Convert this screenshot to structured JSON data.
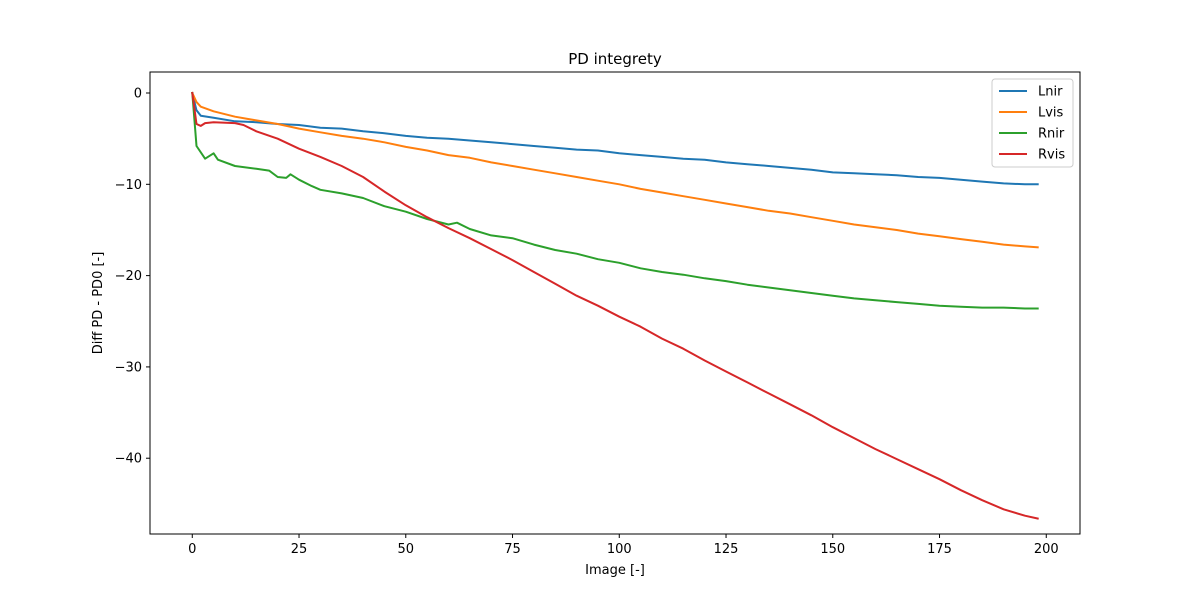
{
  "chart_data": {
    "type": "line",
    "title": "PD integrety",
    "xlabel": "Image [-]",
    "ylabel": "Diff PD - PD0 [-]",
    "xlim": [
      -9.9,
      207.9
    ],
    "ylim": [
      -48.3,
      2.3
    ],
    "x_ticks": [
      0,
      25,
      50,
      75,
      100,
      125,
      150,
      175,
      200
    ],
    "y_ticks": [
      0,
      -10,
      -20,
      -30,
      -40
    ],
    "x_tick_labels": [
      "0",
      "25",
      "50",
      "75",
      "100",
      "125",
      "150",
      "175",
      "200"
    ],
    "y_tick_labels": [
      "0",
      "−10",
      "−20",
      "−30",
      "−40"
    ],
    "grid": false,
    "legend_position": "top-right",
    "series": [
      {
        "name": "Lnir",
        "color": "#1f77b4",
        "points": [
          [
            0,
            0
          ],
          [
            1,
            -1.9
          ],
          [
            2,
            -2.5
          ],
          [
            5,
            -2.7
          ],
          [
            10,
            -3.1
          ],
          [
            15,
            -3.2
          ],
          [
            20,
            -3.4
          ],
          [
            25,
            -3.5
          ],
          [
            30,
            -3.8
          ],
          [
            35,
            -3.9
          ],
          [
            40,
            -4.2
          ],
          [
            45,
            -4.4
          ],
          [
            50,
            -4.7
          ],
          [
            55,
            -4.9
          ],
          [
            60,
            -5.0
          ],
          [
            65,
            -5.2
          ],
          [
            70,
            -5.4
          ],
          [
            75,
            -5.6
          ],
          [
            80,
            -5.8
          ],
          [
            85,
            -6.0
          ],
          [
            90,
            -6.2
          ],
          [
            95,
            -6.3
          ],
          [
            100,
            -6.6
          ],
          [
            105,
            -6.8
          ],
          [
            110,
            -7.0
          ],
          [
            115,
            -7.2
          ],
          [
            120,
            -7.3
          ],
          [
            125,
            -7.6
          ],
          [
            130,
            -7.8
          ],
          [
            135,
            -8.0
          ],
          [
            140,
            -8.2
          ],
          [
            145,
            -8.4
          ],
          [
            150,
            -8.7
          ],
          [
            155,
            -8.8
          ],
          [
            160,
            -8.9
          ],
          [
            165,
            -9.0
          ],
          [
            170,
            -9.2
          ],
          [
            175,
            -9.3
          ],
          [
            180,
            -9.5
          ],
          [
            185,
            -9.7
          ],
          [
            190,
            -9.9
          ],
          [
            195,
            -10.0
          ],
          [
            198,
            -10.0
          ]
        ]
      },
      {
        "name": "Lvis",
        "color": "#ff7f0e",
        "points": [
          [
            0,
            0
          ],
          [
            1,
            -1.0
          ],
          [
            2,
            -1.5
          ],
          [
            5,
            -2.0
          ],
          [
            10,
            -2.6
          ],
          [
            15,
            -3.0
          ],
          [
            20,
            -3.4
          ],
          [
            25,
            -3.9
          ],
          [
            30,
            -4.3
          ],
          [
            35,
            -4.7
          ],
          [
            40,
            -5.0
          ],
          [
            45,
            -5.4
          ],
          [
            50,
            -5.9
          ],
          [
            55,
            -6.3
          ],
          [
            60,
            -6.8
          ],
          [
            65,
            -7.1
          ],
          [
            70,
            -7.6
          ],
          [
            75,
            -8.0
          ],
          [
            80,
            -8.4
          ],
          [
            85,
            -8.8
          ],
          [
            90,
            -9.2
          ],
          [
            95,
            -9.6
          ],
          [
            100,
            -10.0
          ],
          [
            105,
            -10.5
          ],
          [
            110,
            -10.9
          ],
          [
            115,
            -11.3
          ],
          [
            120,
            -11.7
          ],
          [
            125,
            -12.1
          ],
          [
            130,
            -12.5
          ],
          [
            135,
            -12.9
          ],
          [
            140,
            -13.2
          ],
          [
            145,
            -13.6
          ],
          [
            150,
            -14.0
          ],
          [
            155,
            -14.4
          ],
          [
            160,
            -14.7
          ],
          [
            165,
            -15.0
          ],
          [
            170,
            -15.4
          ],
          [
            175,
            -15.7
          ],
          [
            180,
            -16.0
          ],
          [
            185,
            -16.3
          ],
          [
            190,
            -16.6
          ],
          [
            195,
            -16.8
          ],
          [
            198,
            -16.9
          ]
        ]
      },
      {
        "name": "Rnir",
        "color": "#2ca02c",
        "points": [
          [
            0,
            0
          ],
          [
            1,
            -5.8
          ],
          [
            3,
            -7.2
          ],
          [
            5,
            -6.6
          ],
          [
            6,
            -7.3
          ],
          [
            10,
            -8.0
          ],
          [
            15,
            -8.3
          ],
          [
            18,
            -8.5
          ],
          [
            20,
            -9.2
          ],
          [
            22,
            -9.3
          ],
          [
            23,
            -8.9
          ],
          [
            25,
            -9.5
          ],
          [
            28,
            -10.2
          ],
          [
            30,
            -10.6
          ],
          [
            35,
            -11.0
          ],
          [
            40,
            -11.5
          ],
          [
            45,
            -12.4
          ],
          [
            50,
            -13.0
          ],
          [
            55,
            -13.8
          ],
          [
            60,
            -14.4
          ],
          [
            62,
            -14.2
          ],
          [
            65,
            -14.9
          ],
          [
            70,
            -15.6
          ],
          [
            75,
            -15.9
          ],
          [
            80,
            -16.6
          ],
          [
            85,
            -17.2
          ],
          [
            90,
            -17.6
          ],
          [
            95,
            -18.2
          ],
          [
            100,
            -18.6
          ],
          [
            105,
            -19.2
          ],
          [
            110,
            -19.6
          ],
          [
            115,
            -19.9
          ],
          [
            120,
            -20.3
          ],
          [
            125,
            -20.6
          ],
          [
            130,
            -21.0
          ],
          [
            135,
            -21.3
          ],
          [
            140,
            -21.6
          ],
          [
            145,
            -21.9
          ],
          [
            150,
            -22.2
          ],
          [
            155,
            -22.5
          ],
          [
            160,
            -22.7
          ],
          [
            165,
            -22.9
          ],
          [
            170,
            -23.1
          ],
          [
            175,
            -23.3
          ],
          [
            180,
            -23.4
          ],
          [
            185,
            -23.5
          ],
          [
            190,
            -23.5
          ],
          [
            195,
            -23.6
          ],
          [
            198,
            -23.6
          ]
        ]
      },
      {
        "name": "Rvis",
        "color": "#d62728",
        "points": [
          [
            0,
            0
          ],
          [
            1,
            -3.4
          ],
          [
            2,
            -3.6
          ],
          [
            3,
            -3.3
          ],
          [
            5,
            -3.2
          ],
          [
            10,
            -3.3
          ],
          [
            12,
            -3.5
          ],
          [
            15,
            -4.2
          ],
          [
            20,
            -5.0
          ],
          [
            25,
            -6.1
          ],
          [
            30,
            -7.0
          ],
          [
            35,
            -8.0
          ],
          [
            40,
            -9.2
          ],
          [
            45,
            -10.8
          ],
          [
            50,
            -12.3
          ],
          [
            55,
            -13.6
          ],
          [
            60,
            -14.8
          ],
          [
            65,
            -15.9
          ],
          [
            70,
            -17.1
          ],
          [
            75,
            -18.3
          ],
          [
            80,
            -19.6
          ],
          [
            85,
            -20.9
          ],
          [
            90,
            -22.2
          ],
          [
            95,
            -23.3
          ],
          [
            100,
            -24.5
          ],
          [
            105,
            -25.6
          ],
          [
            110,
            -26.9
          ],
          [
            115,
            -28.0
          ],
          [
            120,
            -29.3
          ],
          [
            125,
            -30.5
          ],
          [
            130,
            -31.7
          ],
          [
            135,
            -32.9
          ],
          [
            140,
            -34.1
          ],
          [
            145,
            -35.3
          ],
          [
            150,
            -36.6
          ],
          [
            155,
            -37.8
          ],
          [
            160,
            -39.0
          ],
          [
            165,
            -40.1
          ],
          [
            170,
            -41.2
          ],
          [
            175,
            -42.3
          ],
          [
            180,
            -43.5
          ],
          [
            185,
            -44.6
          ],
          [
            190,
            -45.6
          ],
          [
            195,
            -46.3
          ],
          [
            198,
            -46.6
          ]
        ]
      }
    ]
  }
}
